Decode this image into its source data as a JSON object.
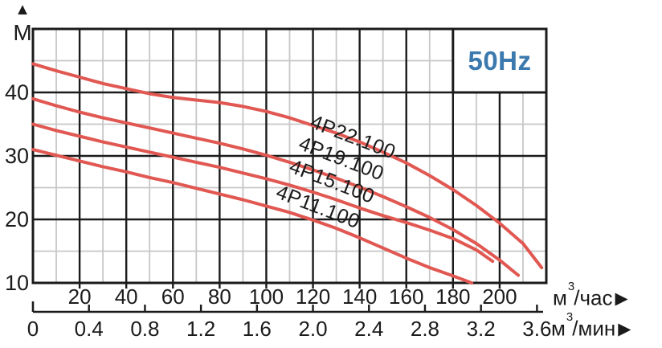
{
  "labels": {
    "frequency": "50Hz",
    "y_unit": "M",
    "up_arrow": "▲",
    "unit_hour": {
      "prefix": "м",
      "sup": "3",
      "suffix": "/час",
      "arrow": "▶"
    },
    "unit_min": {
      "prefix": "м",
      "sup": "3",
      "suffix": "/мин",
      "arrow": "▶"
    }
  },
  "colors": {
    "curve": "#e15852",
    "grid_major": "#1b1b1b",
    "grid_minor": "#c7c7c7",
    "text": "#1b1b1b",
    "frequency_text": "#3b79ae",
    "background": "#ffffff"
  },
  "chart_data": {
    "type": "line",
    "title": "",
    "frequency": "50Hz",
    "ylabel": "M",
    "xlabel_primary": "м³/час",
    "xlabel_secondary": "м³/мин",
    "xlim": [
      0,
      220
    ],
    "ylim": [
      10,
      50
    ],
    "grid": {
      "x_major": 20,
      "x_minor": 10,
      "y_major": 10,
      "y_minor": 5
    },
    "y_ticks": [
      10,
      20,
      30,
      40
    ],
    "x_ticks_hour": [
      20,
      40,
      60,
      80,
      100,
      120,
      140,
      160,
      180,
      200
    ],
    "x_ticks_min": [
      0,
      0.4,
      0.8,
      1.2,
      1.6,
      2.0,
      2.4,
      2.8,
      3.2,
      3.6
    ],
    "series": [
      {
        "name": "4P22.100",
        "label_pos": [
          137,
          32.8
        ],
        "label_angle": 21,
        "points": [
          [
            0,
            44.5
          ],
          [
            10,
            43.4
          ],
          [
            20,
            42.4
          ],
          [
            30,
            41.4
          ],
          [
            40,
            40.6
          ],
          [
            50,
            39.8
          ],
          [
            60,
            39.2
          ],
          [
            70,
            38.8
          ],
          [
            80,
            38.4
          ],
          [
            90,
            37.8
          ],
          [
            100,
            37
          ],
          [
            110,
            36
          ],
          [
            120,
            34.8
          ],
          [
            130,
            33.6
          ],
          [
            140,
            32.2
          ],
          [
            150,
            30.6
          ],
          [
            160,
            28.9
          ],
          [
            170,
            26.9
          ],
          [
            180,
            24.7
          ],
          [
            190,
            22.2
          ],
          [
            200,
            19.4
          ],
          [
            210,
            16.2
          ],
          [
            218,
            12.4
          ]
        ]
      },
      {
        "name": "4P19.100",
        "label_pos": [
          132,
          29.4
        ],
        "label_angle": 21,
        "points": [
          [
            0,
            39
          ],
          [
            10,
            37.9
          ],
          [
            20,
            36.9
          ],
          [
            30,
            36
          ],
          [
            40,
            35.2
          ],
          [
            50,
            34.4
          ],
          [
            60,
            33.6
          ],
          [
            70,
            32.8
          ],
          [
            80,
            32
          ],
          [
            90,
            31.1
          ],
          [
            100,
            30.1
          ],
          [
            110,
            29
          ],
          [
            120,
            27.8
          ],
          [
            130,
            26.5
          ],
          [
            140,
            25.1
          ],
          [
            150,
            23.6
          ],
          [
            160,
            22
          ],
          [
            170,
            20.3
          ],
          [
            180,
            18.4
          ],
          [
            190,
            16.2
          ],
          [
            200,
            13.6
          ],
          [
            208,
            11.2
          ]
        ]
      },
      {
        "name": "4P15.100",
        "label_pos": [
          128,
          25.8
        ],
        "label_angle": 21,
        "points": [
          [
            0,
            35
          ],
          [
            10,
            34
          ],
          [
            20,
            33.1
          ],
          [
            30,
            32.2
          ],
          [
            40,
            31.4
          ],
          [
            50,
            30.6
          ],
          [
            60,
            29.8
          ],
          [
            70,
            29
          ],
          [
            80,
            28.2
          ],
          [
            90,
            27.3
          ],
          [
            100,
            26.4
          ],
          [
            110,
            25.4
          ],
          [
            120,
            24.3
          ],
          [
            130,
            23.1
          ],
          [
            140,
            21.8
          ],
          [
            150,
            20.6
          ],
          [
            160,
            19.5
          ],
          [
            170,
            18.3
          ],
          [
            180,
            17
          ],
          [
            190,
            15.2
          ],
          [
            197,
            13.4
          ]
        ]
      },
      {
        "name": "4P11.100",
        "label_pos": [
          122,
          21.8
        ],
        "label_angle": 21,
        "points": [
          [
            0,
            31
          ],
          [
            10,
            30.1
          ],
          [
            20,
            29.2
          ],
          [
            30,
            28.3
          ],
          [
            40,
            27.5
          ],
          [
            50,
            26.6
          ],
          [
            60,
            25.8
          ],
          [
            70,
            24.9
          ],
          [
            80,
            24
          ],
          [
            90,
            23.1
          ],
          [
            100,
            22.1
          ],
          [
            110,
            21.1
          ],
          [
            120,
            19.9
          ],
          [
            130,
            18.6
          ],
          [
            140,
            17.1
          ],
          [
            150,
            15.5
          ],
          [
            160,
            13.9
          ],
          [
            170,
            12.4
          ],
          [
            180,
            11.1
          ],
          [
            188,
            10
          ]
        ]
      }
    ]
  }
}
